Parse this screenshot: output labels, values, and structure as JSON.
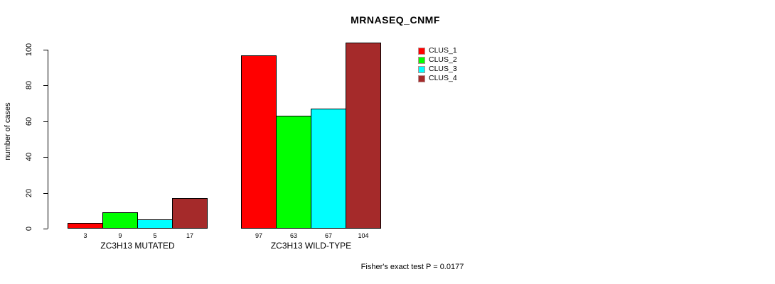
{
  "chart_data": {
    "type": "bar",
    "title": "MRNASEQ_CNMF",
    "xlabel": "",
    "ylabel": "number of cases",
    "ylim": [
      0,
      100
    ],
    "yticks": [
      0,
      20,
      40,
      60,
      80,
      100
    ],
    "grid": false,
    "legend_position": "top-right",
    "categories": [
      "ZC3H13 MUTATED",
      "ZC3H13 WILD-TYPE"
    ],
    "series": [
      {
        "name": "CLUS_1",
        "color": "#FF0000",
        "values": [
          3,
          97
        ]
      },
      {
        "name": "CLUS_2",
        "color": "#00FF00",
        "values": [
          9,
          63
        ]
      },
      {
        "name": "CLUS_3",
        "color": "#00FFFF",
        "values": [
          5,
          67
        ]
      },
      {
        "name": "CLUS_4",
        "color": "#A52A2A",
        "values": [
          17,
          104
        ]
      }
    ],
    "bar_value_labels": [
      [
        "3",
        "9",
        "5",
        "17"
      ],
      [
        "97",
        "63",
        "67",
        "104"
      ]
    ],
    "annotation": "Fisher's exact test P = 0.0177"
  }
}
